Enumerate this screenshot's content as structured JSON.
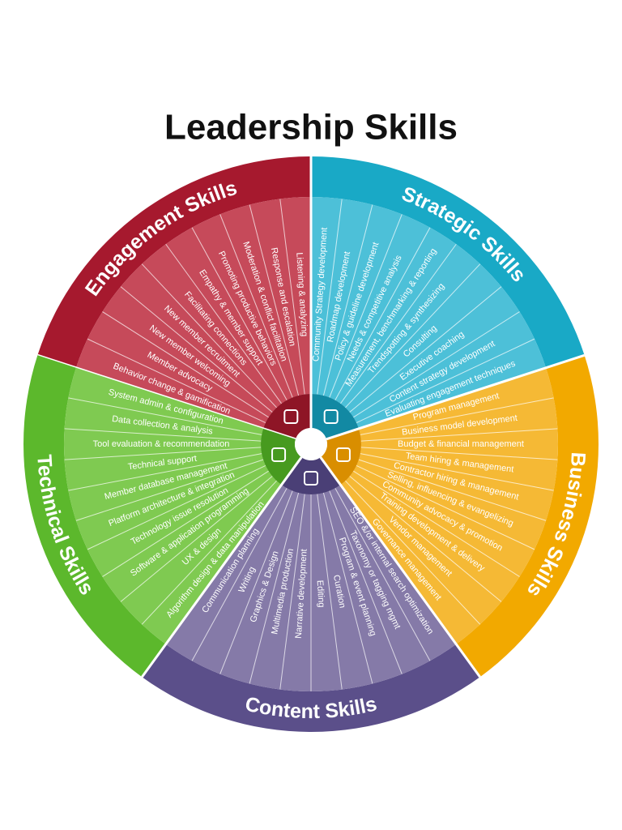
{
  "title": "Leadership Skills",
  "sections": [
    {
      "name": "Engagement Skills",
      "skills": [
        "Behavior change & gamification",
        "Member advocacy",
        "New member welcoming",
        "New member recruitment",
        "Facilitating connections",
        "Empathy & member support",
        "Promoting productive behaviors",
        "Moderation & conflict facilitation",
        "Response and escalation",
        "Listening & analyzing"
      ]
    },
    {
      "name": "Strategic Skills",
      "skills": [
        "Community Strategy development",
        "Roadmap development",
        "Policy & guideline development",
        "Needs & competitive analysis",
        "Measurement, benchmarking & reporting",
        "Trendspotting & synthesizing",
        "Consulting",
        "Executive coaching",
        "Content strategy development",
        "Evaluating engagement techniques"
      ]
    },
    {
      "name": "Business Skills",
      "skills": [
        "Program management",
        "Business model development",
        "Budget & financial management",
        "Team hiring & management",
        "Contractor hiring & management",
        "Selling, influencing & evangelizing",
        "Community advocacy & promotion",
        "Training development & delivery",
        "Vendor management",
        "Governance management"
      ]
    },
    {
      "name": "Content Skills",
      "skills": [
        "SEO &/or internal search optimization",
        "Taxonomy or tagging mgmt",
        "Program & event planning",
        "Curation",
        "Editing",
        "Narrative development",
        "Multimedia production",
        "Graphics & Design",
        "Writing",
        "Communication planning"
      ]
    },
    {
      "name": "Technical Skills",
      "skills": [
        "Algorithm design & data manipulation",
        "UX & design",
        "Software & application programming",
        "Technology issue resolution",
        "Platform architecture & integration",
        "Member database management",
        "Technical support",
        "Tool evaluation & recommendation",
        "Data collection & analysis",
        "System admin & configuration"
      ]
    }
  ]
}
